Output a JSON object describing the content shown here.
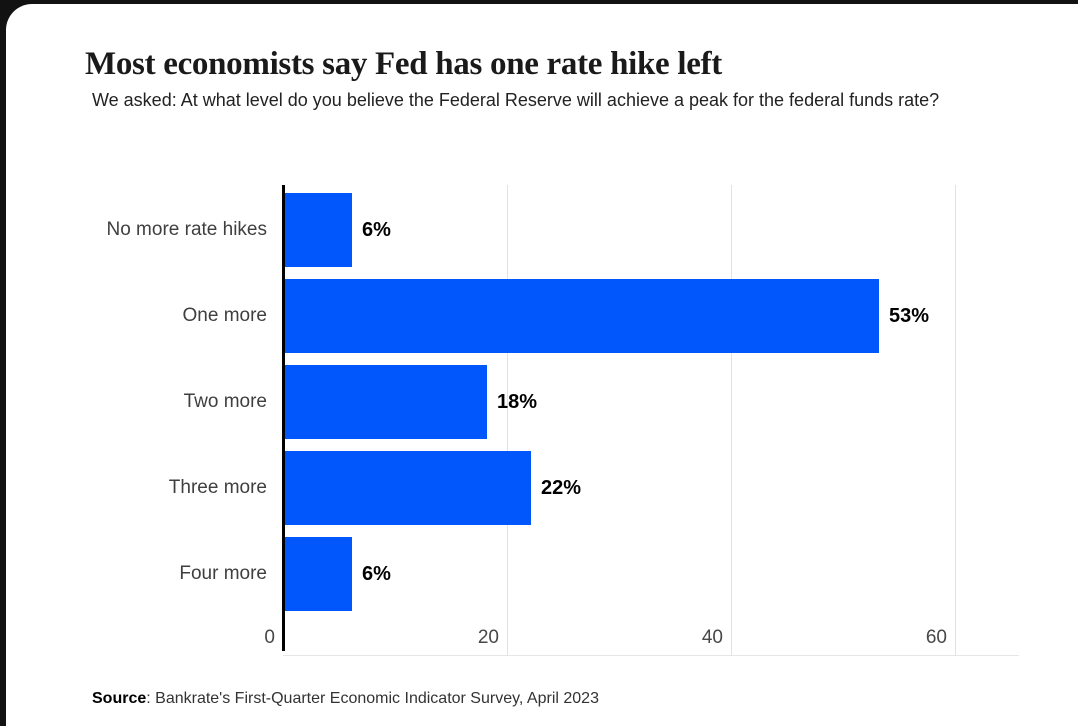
{
  "page": {
    "title": "Most economists say Fed has one rate hike left",
    "subtitle": "We asked: At what level do you believe the Federal Reserve will achieve a peak for the federal funds rate?",
    "source_label": "Source",
    "source_text": ": Bankrate's First-Quarter Economic Indicator Survey, April 2023"
  },
  "colors": {
    "bar": "#0157fc",
    "axis": "#000000",
    "gridline": "#e2e2e2",
    "frame_background": "#121212",
    "card_background": "#ffffff"
  },
  "chart_data": {
    "type": "bar",
    "orientation": "horizontal",
    "title": "Most economists say Fed has one rate hike left",
    "subtitle": "We asked: At what level do you believe the Federal Reserve will achieve a peak for the federal funds rate?",
    "categories": [
      "No more rate hikes",
      "One more",
      "Two more",
      "Three more",
      "Four more"
    ],
    "values": [
      6,
      53,
      18,
      22,
      6
    ],
    "data_labels": [
      "6%",
      "53%",
      "18%",
      "22%",
      "6%"
    ],
    "xlabel": "",
    "ylabel": "",
    "xticks": [
      "0",
      "20",
      "40",
      "60"
    ],
    "xtick_values": [
      0,
      20,
      40,
      60
    ],
    "xlim": [
      0,
      65
    ],
    "grid": "vertical",
    "legend": "none",
    "source": "Source: Bankrate's First-Quarter Economic Indicator Survey, April 2023"
  }
}
